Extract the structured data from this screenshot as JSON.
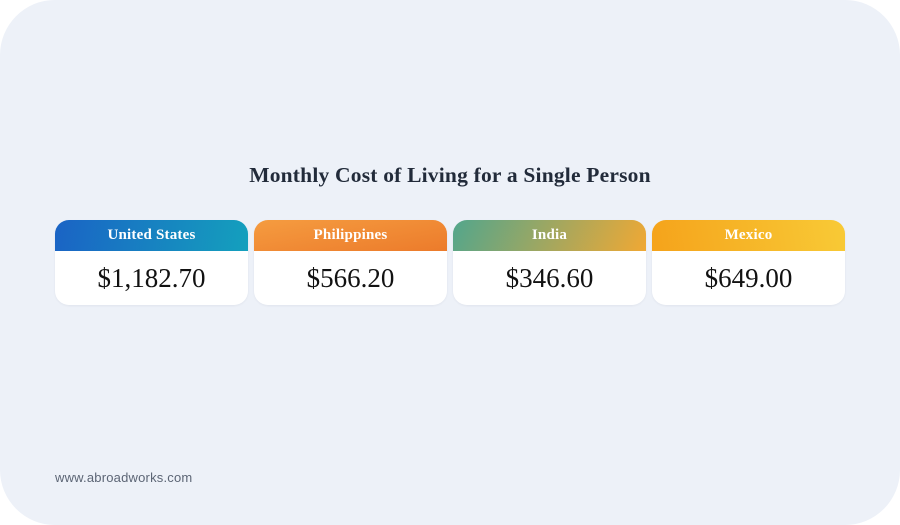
{
  "page": {
    "title": "Monthly Cost of Living for a Single Person",
    "footer": "www.abroadworks.com"
  },
  "colors": {
    "panel_background": "#edf1f8",
    "outer_background": "#ffffff",
    "title_text": "#222b3a",
    "value_text": "#121212",
    "footer_text": "#5c6575",
    "card_body_background": "#ffffff"
  },
  "chart_data": {
    "type": "table",
    "title": "Monthly Cost of Living for a Single Person",
    "categories": [
      "United States",
      "Philippines",
      "India",
      "Mexico"
    ],
    "values": [
      1182.7,
      566.2,
      346.6,
      649.0
    ],
    "value_labels": [
      "$1,182.70",
      "$566.20",
      "$346.60",
      "$649.00"
    ],
    "unit": "USD per month",
    "legend_position": "none",
    "grid": false
  },
  "cards": [
    {
      "label": "United States",
      "value": "$1,182.70",
      "gradient_angle": "100deg",
      "gradient_start": "#1a63c5",
      "gradient_end": "#14a0bd"
    },
    {
      "label": "Philippines",
      "value": "$566.20",
      "gradient_angle": "170deg",
      "gradient_start": "#f59c40",
      "gradient_end": "#ec7b2b"
    },
    {
      "label": "India",
      "value": "$346.60",
      "gradient_angle": "115deg",
      "gradient_start": "#52a68c",
      "gradient_end": "#f0a834"
    },
    {
      "label": "Mexico",
      "value": "$649.00",
      "gradient_angle": "80deg",
      "gradient_start": "#f5a31b",
      "gradient_end": "#f8ca36"
    }
  ]
}
